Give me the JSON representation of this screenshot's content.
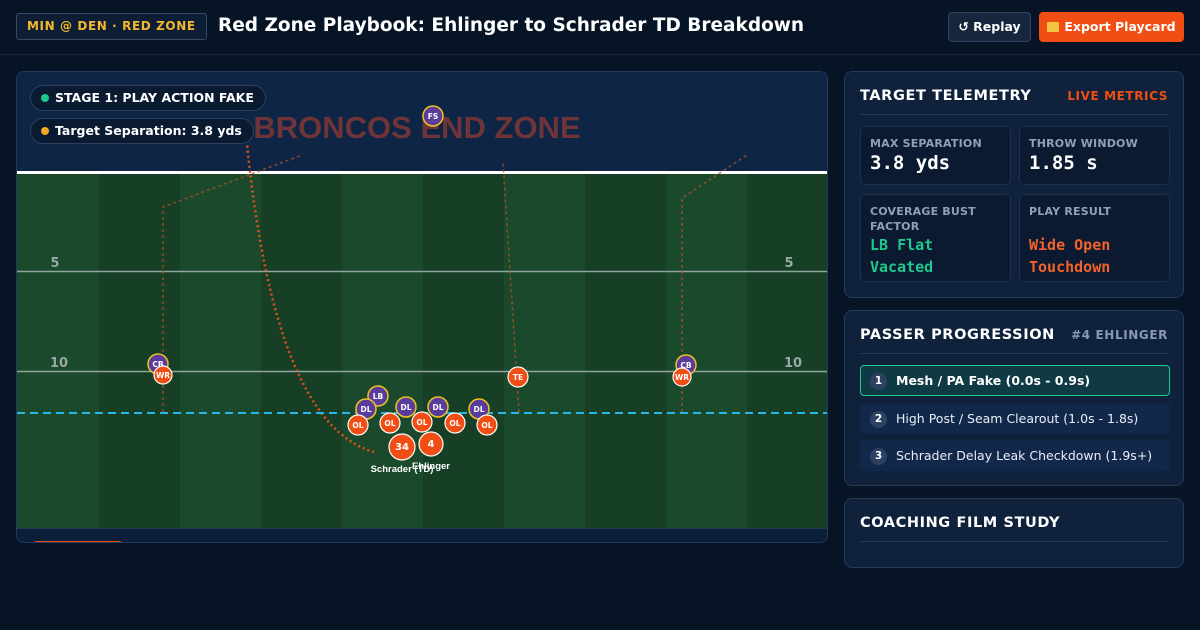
{
  "header": {
    "badge": "MIN @ DEN · RED ZONE",
    "title": "Red Zone Playbook: Ehlinger to Schrader TD Breakdown",
    "replay_label": "↺ Replay",
    "export_label": "Export Playcard"
  },
  "field": {
    "stage_label": "STAGE 1: PLAY ACTION FAKE",
    "separation_label": "Target Separation: 3.8 yds",
    "end_zone_text": "BRONCOS END ZONE",
    "yard_numbers": [
      "5",
      "5",
      "10",
      "10"
    ],
    "player_markers": [
      "FS",
      "CB",
      "CB",
      "WR",
      "WR",
      "TE",
      "LB",
      "DL",
      "DL",
      "DL",
      "DL",
      "OL",
      "OL",
      "OL",
      "OL",
      "OL",
      "34",
      "4"
    ],
    "player_names": [
      "Schrader (TD)",
      "Ehlinger"
    ],
    "colors": {
      "offense": "#f04e14",
      "defense": "#5a3c9c",
      "scrimmage": "#29b6e8",
      "route": "#e0521a",
      "stage_dot": "#1fc98d",
      "sep_dot": "#f5a623"
    }
  },
  "telemetry": {
    "title": "TARGET TELEMETRY",
    "tag": "LIVE METRICS",
    "metrics": [
      {
        "label": "MAX SEPARATION",
        "value": "3.8 yds"
      },
      {
        "label": "THROW WINDOW",
        "value": "1.85 s"
      },
      {
        "label": "COVERAGE BUST FACTOR",
        "value": "LB Flat Vacated"
      },
      {
        "label": "PLAY RESULT",
        "value": "Wide Open Touchdown"
      }
    ]
  },
  "progression": {
    "title": "PASSER PROGRESSION",
    "tag": "#4 EHLINGER",
    "steps": [
      {
        "num": "1",
        "label": "Mesh / PA Fake (0.0s - 0.9s)"
      },
      {
        "num": "2",
        "label": "High Post / Seam Clearout (1.0s - 1.8s)"
      },
      {
        "num": "3",
        "label": "Schrader Delay Leak Checkdown (1.9s+)"
      }
    ]
  },
  "film": {
    "title": "COACHING FILM STUDY"
  }
}
